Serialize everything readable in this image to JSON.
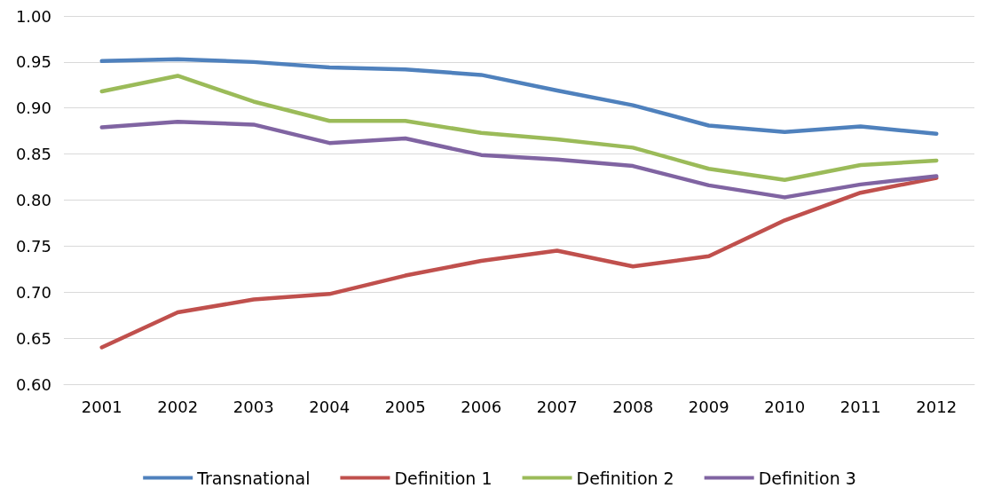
{
  "chart_data": {
    "type": "line",
    "categories": [
      "2001",
      "2002",
      "2003",
      "2004",
      "2005",
      "2006",
      "2007",
      "2008",
      "2009",
      "2010",
      "2011",
      "2012"
    ],
    "series": [
      {
        "name": "Transnational",
        "color": "#4f81bd",
        "values": [
          0.951,
          0.953,
          0.95,
          0.944,
          0.942,
          0.936,
          0.919,
          0.903,
          0.881,
          0.874,
          0.88,
          0.872
        ]
      },
      {
        "name": "Definition 1",
        "color": "#c0504d",
        "values": [
          0.64,
          0.678,
          0.692,
          0.698,
          0.718,
          0.734,
          0.745,
          0.728,
          0.739,
          0.778,
          0.808,
          0.824
        ]
      },
      {
        "name": "Definition 2",
        "color": "#9bbb59",
        "values": [
          0.918,
          0.935,
          0.907,
          0.886,
          0.886,
          0.873,
          0.866,
          0.857,
          0.834,
          0.822,
          0.838,
          0.843
        ]
      },
      {
        "name": "Definition 3",
        "color": "#8064a2",
        "values": [
          0.879,
          0.885,
          0.882,
          0.862,
          0.867,
          0.849,
          0.844,
          0.837,
          0.816,
          0.803,
          0.817,
          0.826
        ]
      }
    ],
    "ylim": [
      0.6,
      1.0
    ],
    "yticks": [
      {
        "value": 0.6,
        "label": "0.60"
      },
      {
        "value": 0.65,
        "label": "0.65"
      },
      {
        "value": 0.7,
        "label": "0.70"
      },
      {
        "value": 0.75,
        "label": "0.75"
      },
      {
        "value": 0.8,
        "label": "0.80"
      },
      {
        "value": 0.85,
        "label": "0.85"
      },
      {
        "value": 0.9,
        "label": "0.90"
      },
      {
        "value": 0.95,
        "label": "0.95"
      },
      {
        "value": 1.0,
        "label": "1.00"
      }
    ],
    "grid": "y",
    "legend": "bottom",
    "marker": "none",
    "line_style": "solid"
  }
}
